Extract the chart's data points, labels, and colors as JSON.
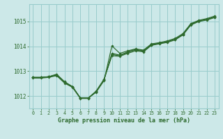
{
  "title": "Graphe pression niveau de la mer (hPa)",
  "background_color": "#cce8e8",
  "grid_color": "#99cccc",
  "line_color": "#2d6a2d",
  "text_color": "#2d6a2d",
  "xlim": [
    -0.5,
    23.5
  ],
  "ylim": [
    1011.5,
    1015.7
  ],
  "yticks": [
    1012,
    1013,
    1014,
    1015
  ],
  "xticks": [
    0,
    1,
    2,
    3,
    4,
    5,
    6,
    7,
    8,
    9,
    10,
    11,
    12,
    13,
    14,
    15,
    16,
    17,
    18,
    19,
    20,
    21,
    22,
    23
  ],
  "series": [
    [
      1012.75,
      1012.75,
      1012.78,
      1012.85,
      1012.55,
      1012.38,
      1011.92,
      1011.92,
      1012.15,
      1012.62,
      1014.02,
      1013.72,
      1013.82,
      1013.9,
      1013.85,
      1014.1,
      1014.15,
      1014.22,
      1014.32,
      1014.52,
      1014.92,
      1015.05,
      1015.12,
      1015.22
    ],
    [
      1012.75,
      1012.75,
      1012.78,
      1012.85,
      1012.55,
      1012.38,
      1011.92,
      1011.92,
      1012.2,
      1012.68,
      1013.62,
      1013.6,
      1013.72,
      1013.82,
      1013.78,
      1014.04,
      1014.1,
      1014.16,
      1014.26,
      1014.46,
      1014.86,
      1015.0,
      1015.06,
      1015.16
    ],
    [
      1012.75,
      1012.75,
      1012.78,
      1012.88,
      1012.58,
      1012.38,
      1011.92,
      1011.92,
      1012.18,
      1012.65,
      1013.68,
      1013.62,
      1013.76,
      1013.86,
      1013.8,
      1014.06,
      1014.12,
      1014.18,
      1014.28,
      1014.48,
      1014.88,
      1015.02,
      1015.08,
      1015.18
    ],
    [
      1012.72,
      1012.72,
      1012.75,
      1012.82,
      1012.52,
      1012.35,
      1011.9,
      1011.9,
      1012.17,
      1012.65,
      1013.72,
      1013.65,
      1013.78,
      1013.88,
      1013.82,
      1014.08,
      1014.13,
      1014.19,
      1014.29,
      1014.49,
      1014.9,
      1015.03,
      1015.09,
      1015.19
    ]
  ]
}
